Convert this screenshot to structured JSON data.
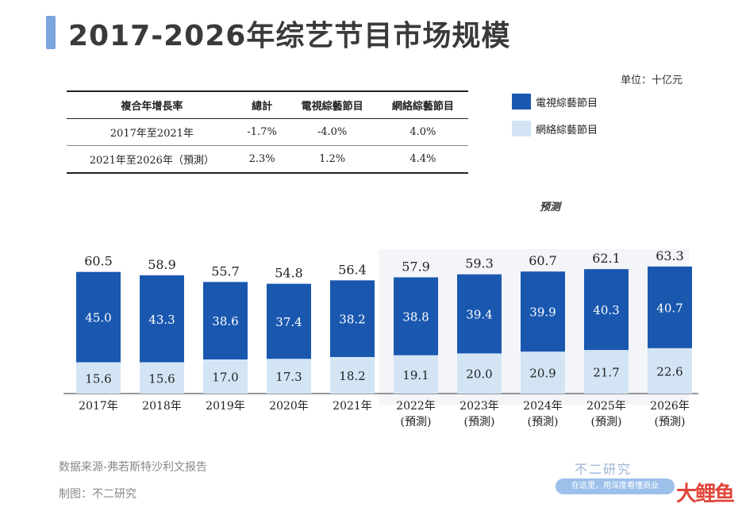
{
  "title": "2017-2026年综艺节目市场规模",
  "unit": "单位：十亿元",
  "forecast_label": "预测",
  "table": {
    "headers": [
      "複合年增長率",
      "總計",
      "電視綜藝節目",
      "網絡綜藝節目"
    ],
    "rows": [
      [
        "2017年至2021年",
        "-1.7%",
        "-4.0%",
        "4.0%"
      ],
      [
        "2021年至2026年（預測）",
        "2.3%",
        "1.2%",
        "4.4%"
      ]
    ]
  },
  "legend": {
    "tv": "電視綜藝節目",
    "online": "網絡綜藝節目"
  },
  "colors": {
    "tv": "#1a58b0",
    "online": "#d3e5f5"
  },
  "chart_data": {
    "type": "bar",
    "stacked": true,
    "categories": [
      "2017年",
      "2018年",
      "2019年",
      "2020年",
      "2021年",
      "2022年",
      "2023年",
      "2024年",
      "2025年",
      "2026年"
    ],
    "category_sublabels": [
      "",
      "",
      "",
      "",
      "",
      "(預測)",
      "(預測)",
      "(預測)",
      "(預測)",
      "(預測)"
    ],
    "series": [
      {
        "name": "網絡綜藝節目",
        "values": [
          15.6,
          15.6,
          17.0,
          17.3,
          18.2,
          19.1,
          20.0,
          20.9,
          21.7,
          22.6
        ]
      },
      {
        "name": "電視綜藝節目",
        "values": [
          45.0,
          43.3,
          38.6,
          37.4,
          38.2,
          38.8,
          39.4,
          39.9,
          40.3,
          40.7
        ]
      }
    ],
    "totals": [
      60.5,
      58.9,
      55.7,
      54.8,
      56.4,
      57.9,
      59.3,
      60.7,
      62.1,
      63.3
    ]
  },
  "footer": {
    "source": "数据来源-弗若斯特沙利文报告",
    "author": "制图：不二研究",
    "brand": "不二研究",
    "slogan": "在这里，用深度看懂商业",
    "logo": "大鲤鱼"
  }
}
